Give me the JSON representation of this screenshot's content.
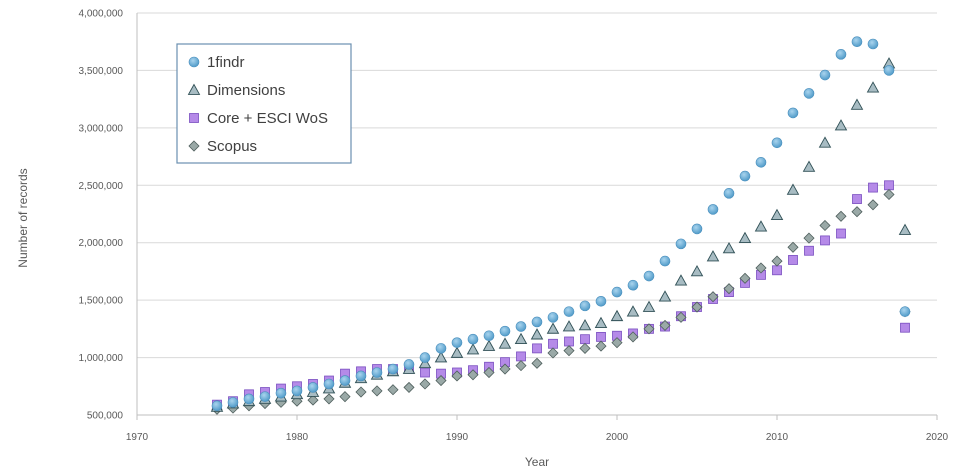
{
  "chart_data": {
    "type": "scatter",
    "title": "",
    "xlabel": "Year",
    "ylabel": "Number of records",
    "xlim": [
      1970,
      2020
    ],
    "ylim": [
      500000,
      4000000
    ],
    "x_ticks": [
      1970,
      1980,
      1990,
      2000,
      2010,
      2020
    ],
    "y_ticks": [
      500000,
      1000000,
      1500000,
      2000000,
      2500000,
      3000000,
      3500000,
      4000000
    ],
    "x_tick_labels": [
      "1970",
      "1980",
      "1990",
      "2000",
      "2010",
      "2020"
    ],
    "y_tick_labels": [
      "500,000",
      "1,000,000",
      "1,500,000",
      "2,000,000",
      "2,500,000",
      "3,000,000",
      "3,500,000",
      "4,000,000"
    ],
    "grid": "horizontal",
    "legend_position": "top-left",
    "x": [
      1975,
      1976,
      1977,
      1978,
      1979,
      1980,
      1981,
      1982,
      1983,
      1984,
      1985,
      1986,
      1987,
      1988,
      1989,
      1990,
      1991,
      1992,
      1993,
      1994,
      1995,
      1996,
      1997,
      1998,
      1999,
      2000,
      2001,
      2002,
      2003,
      2004,
      2005,
      2006,
      2007,
      2008,
      2009,
      2010,
      2011,
      2012,
      2013,
      2014,
      2015,
      2016,
      2017,
      2018
    ],
    "series": [
      {
        "name": "1findr",
        "marker": "circle",
        "color": "#6fb0d6",
        "values": [
          580000,
          610000,
          640000,
          660000,
          690000,
          710000,
          740000,
          770000,
          800000,
          840000,
          870000,
          900000,
          940000,
          1000000,
          1080000,
          1130000,
          1160000,
          1190000,
          1230000,
          1270000,
          1310000,
          1350000,
          1400000,
          1450000,
          1490000,
          1570000,
          1630000,
          1710000,
          1840000,
          1990000,
          2120000,
          2290000,
          2430000,
          2580000,
          2700000,
          2870000,
          3130000,
          3300000,
          3460000,
          3640000,
          3750000,
          3730000,
          3500000,
          1400000
        ]
      },
      {
        "name": "Dimensions",
        "marker": "triangle",
        "color": "#8fa8b0",
        "values": [
          570000,
          600000,
          620000,
          640000,
          660000,
          680000,
          700000,
          730000,
          780000,
          820000,
          850000,
          880000,
          900000,
          950000,
          1000000,
          1040000,
          1070000,
          1100000,
          1120000,
          1160000,
          1200000,
          1250000,
          1270000,
          1280000,
          1300000,
          1360000,
          1400000,
          1440000,
          1530000,
          1670000,
          1750000,
          1880000,
          1950000,
          2040000,
          2140000,
          2240000,
          2460000,
          2660000,
          2870000,
          3020000,
          3200000,
          3350000,
          3560000,
          2110000
        ]
      },
      {
        "name": "Core + ESCI WoS",
        "marker": "square",
        "color": "#a97ddf",
        "values": [
          590000,
          620000,
          680000,
          700000,
          730000,
          750000,
          770000,
          800000,
          860000,
          880000,
          900000,
          900000,
          910000,
          870000,
          860000,
          870000,
          890000,
          920000,
          960000,
          1010000,
          1080000,
          1120000,
          1140000,
          1160000,
          1180000,
          1190000,
          1210000,
          1250000,
          1270000,
          1360000,
          1440000,
          1510000,
          1570000,
          1650000,
          1720000,
          1760000,
          1850000,
          1930000,
          2020000,
          2080000,
          2380000,
          2480000,
          2500000,
          1260000
        ]
      },
      {
        "name": "Scopus",
        "marker": "diamond",
        "color": "#8c9c9a",
        "values": [
          550000,
          560000,
          580000,
          600000,
          610000,
          620000,
          630000,
          640000,
          660000,
          700000,
          710000,
          720000,
          740000,
          770000,
          800000,
          840000,
          850000,
          870000,
          900000,
          930000,
          950000,
          1040000,
          1060000,
          1080000,
          1100000,
          1130000,
          1180000,
          1250000,
          1280000,
          1350000,
          1440000,
          1530000,
          1600000,
          1690000,
          1780000,
          1840000,
          1960000,
          2040000,
          2150000,
          2230000,
          2270000,
          2330000,
          2420000,
          1400000
        ]
      }
    ]
  }
}
